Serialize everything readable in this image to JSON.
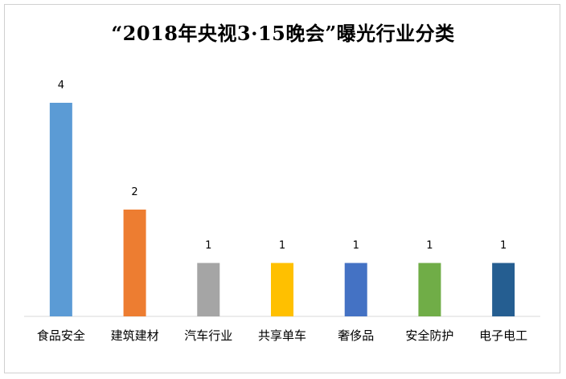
{
  "chart_data": {
    "type": "bar",
    "title": "“2018年央视3·15晚会”曝光行业分类",
    "xlabel": "",
    "ylabel": "",
    "categories": [
      "食品安全",
      "建筑建材",
      "汽车行业",
      "共享单车",
      "奢侈品",
      "安全防护",
      "电子电工"
    ],
    "values": [
      4,
      2,
      1,
      1,
      1,
      1,
      1
    ],
    "colors": [
      "#5b9bd5",
      "#ed7d31",
      "#a5a5a5",
      "#ffc000",
      "#4472c4",
      "#70ad47",
      "#255e91"
    ],
    "ylim": [
      0,
      4
    ],
    "grid": false,
    "legend": "none"
  }
}
